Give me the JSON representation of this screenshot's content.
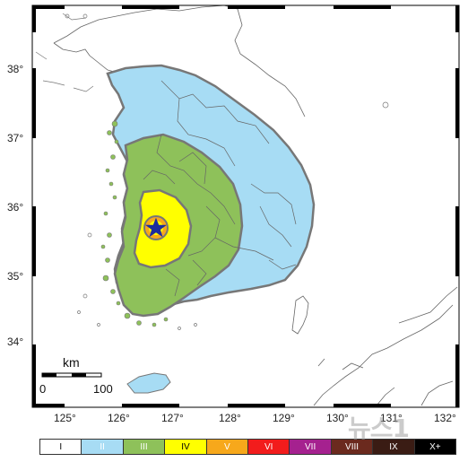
{
  "map": {
    "latitudes": [
      "38°",
      "37°",
      "36°",
      "35°",
      "34°"
    ],
    "longitudes": [
      "125°",
      "126°",
      "127°",
      "128°",
      "129°",
      "130°",
      "131°",
      "132°"
    ],
    "scale": {
      "unit": "km",
      "start": "0",
      "end": "100"
    },
    "epicenter": "star-marker"
  },
  "legend": [
    {
      "label": "I",
      "color": "#ffffff",
      "text_color": "#000000"
    },
    {
      "label": "II",
      "color": "#a7dcf4",
      "text_color": "#ffffff"
    },
    {
      "label": "III",
      "color": "#8ec15a",
      "text_color": "#ffffff"
    },
    {
      "label": "IV",
      "color": "#ffff00",
      "text_color": "#000000"
    },
    {
      "label": "V",
      "color": "#f7a81b",
      "text_color": "#ffffff"
    },
    {
      "label": "VI",
      "color": "#f21c1c",
      "text_color": "#ffffff"
    },
    {
      "label": "VII",
      "color": "#a5218f",
      "text_color": "#ffffff"
    },
    {
      "label": "VIII",
      "color": "#6b2a1e",
      "text_color": "#ffffff"
    },
    {
      "label": "IX",
      "color": "#3a1c14",
      "text_color": "#ffffff"
    },
    {
      "label": "X+",
      "color": "#000000",
      "text_color": "#ffffff"
    }
  ],
  "watermark": "뉴스1"
}
